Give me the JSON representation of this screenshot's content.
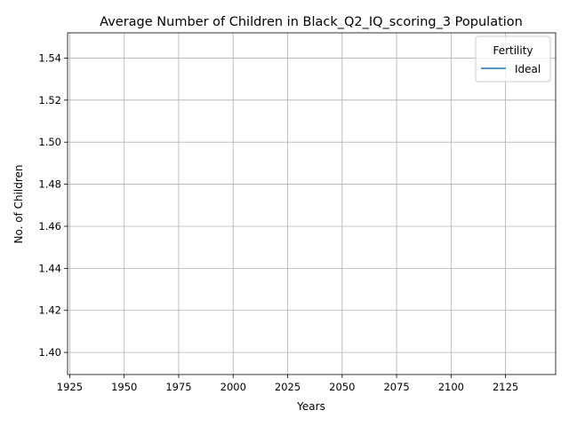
{
  "chart_data": {
    "type": "line",
    "title": "Average Number of Children in Black_Q2_IQ_scoring_3 Population",
    "xlabel": "Years",
    "ylabel": "No. of Children",
    "xlim": [
      1924,
      2148
    ],
    "ylim": [
      1.3895,
      1.552
    ],
    "xticks": [
      1925,
      1950,
      1975,
      2000,
      2025,
      2050,
      2075,
      2100,
      2125
    ],
    "xtick_labels": [
      "1925",
      "1950",
      "1975",
      "2000",
      "2025",
      "2050",
      "2075",
      "2100",
      "2125"
    ],
    "yticks": [
      1.4,
      1.42,
      1.44,
      1.46,
      1.48,
      1.5,
      1.52,
      1.54
    ],
    "ytick_labels": [
      "1.40",
      "1.42",
      "1.44",
      "1.46",
      "1.48",
      "1.50",
      "1.52",
      "1.54"
    ],
    "grid": true,
    "legend": {
      "title": "Fertility",
      "position": "top-right",
      "entries": [
        {
          "label": "Ideal",
          "color": "#1f77b4"
        }
      ]
    },
    "series": [
      {
        "name": "Ideal",
        "color": "#1f77b4",
        "x": [],
        "y": []
      }
    ]
  }
}
